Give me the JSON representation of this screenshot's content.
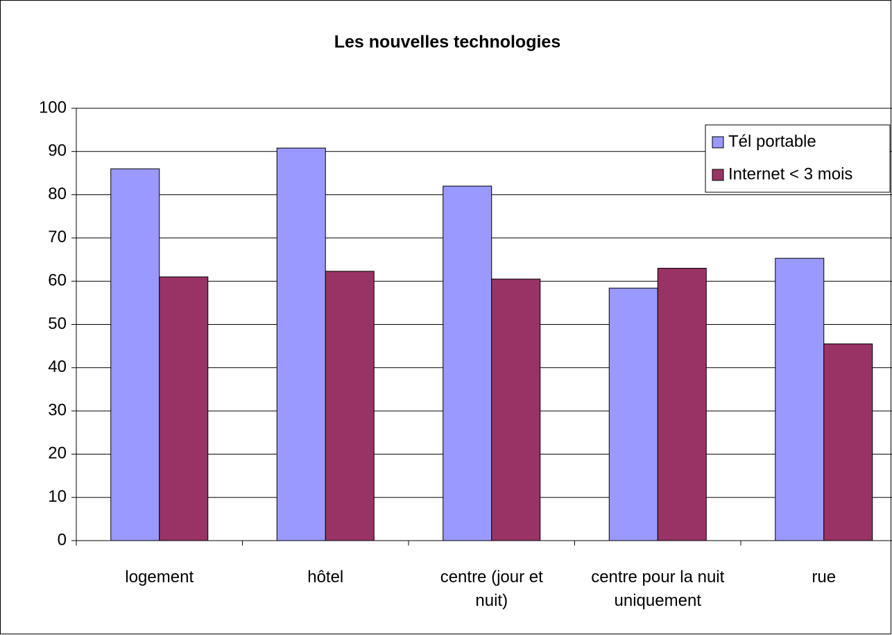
{
  "chart_data": {
    "type": "bar",
    "title": "Les nouvelles technologies",
    "categories": [
      "logement",
      "hôtel",
      "centre (jour et nuit)",
      "centre pour la nuit uniquement",
      "rue"
    ],
    "series": [
      {
        "name": "Tél portable",
        "color": "#9999ff",
        "values": [
          86,
          90.8,
          82,
          58.4,
          65.3
        ]
      },
      {
        "name": "Internet < 3 mois",
        "color": "#993366",
        "values": [
          61,
          62.3,
          60.5,
          63,
          45.5
        ]
      }
    ],
    "ylim": [
      0,
      100
    ],
    "yticks": [
      0,
      10,
      20,
      30,
      40,
      50,
      60,
      70,
      80,
      90,
      100
    ],
    "grid": true,
    "legend": "top-right"
  }
}
